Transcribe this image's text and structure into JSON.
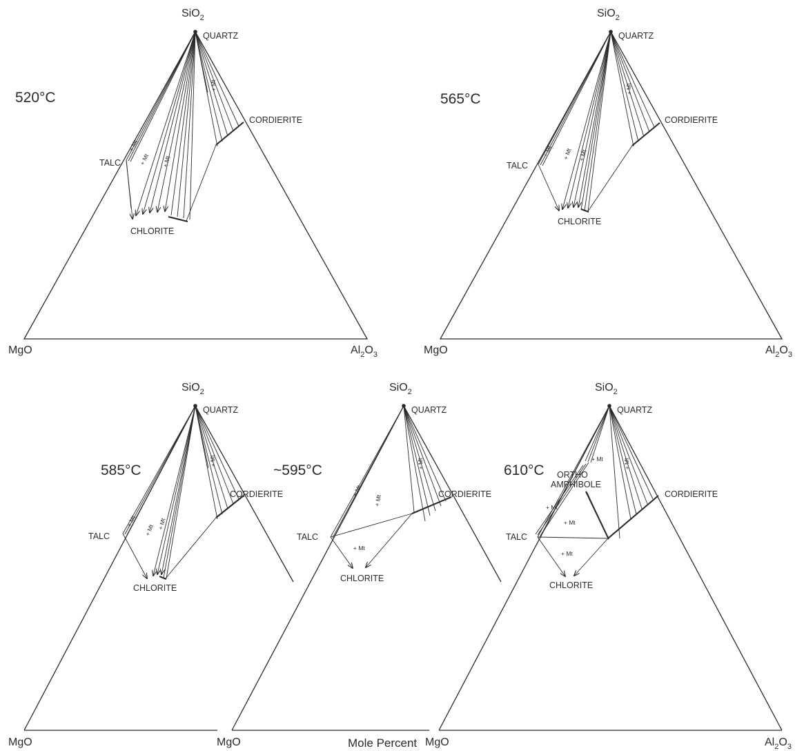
{
  "vertices": {
    "sio2": "SiO",
    "sio2_sub": "2",
    "mgo": "MgO",
    "al2o3_a": "Al",
    "al2o3_sub1": "2",
    "al2o3_b": "O",
    "al2o3_sub2": "3"
  },
  "minerals": {
    "quartz": "QUARTZ",
    "cordierite": "CORDIERITE",
    "talc": "TALC",
    "chlorite": "CHLORITE",
    "ortho": "ORTHO",
    "amphibole": "AMPHIBOLE"
  },
  "assemblage_label": "+ Mt",
  "panels": [
    {
      "temperature": "520°C"
    },
    {
      "temperature": "565°C"
    },
    {
      "temperature": "585°C"
    },
    {
      "temperature": "~595°C"
    },
    {
      "temperature": "610°C"
    }
  ],
  "footer": "Mole Percent"
}
